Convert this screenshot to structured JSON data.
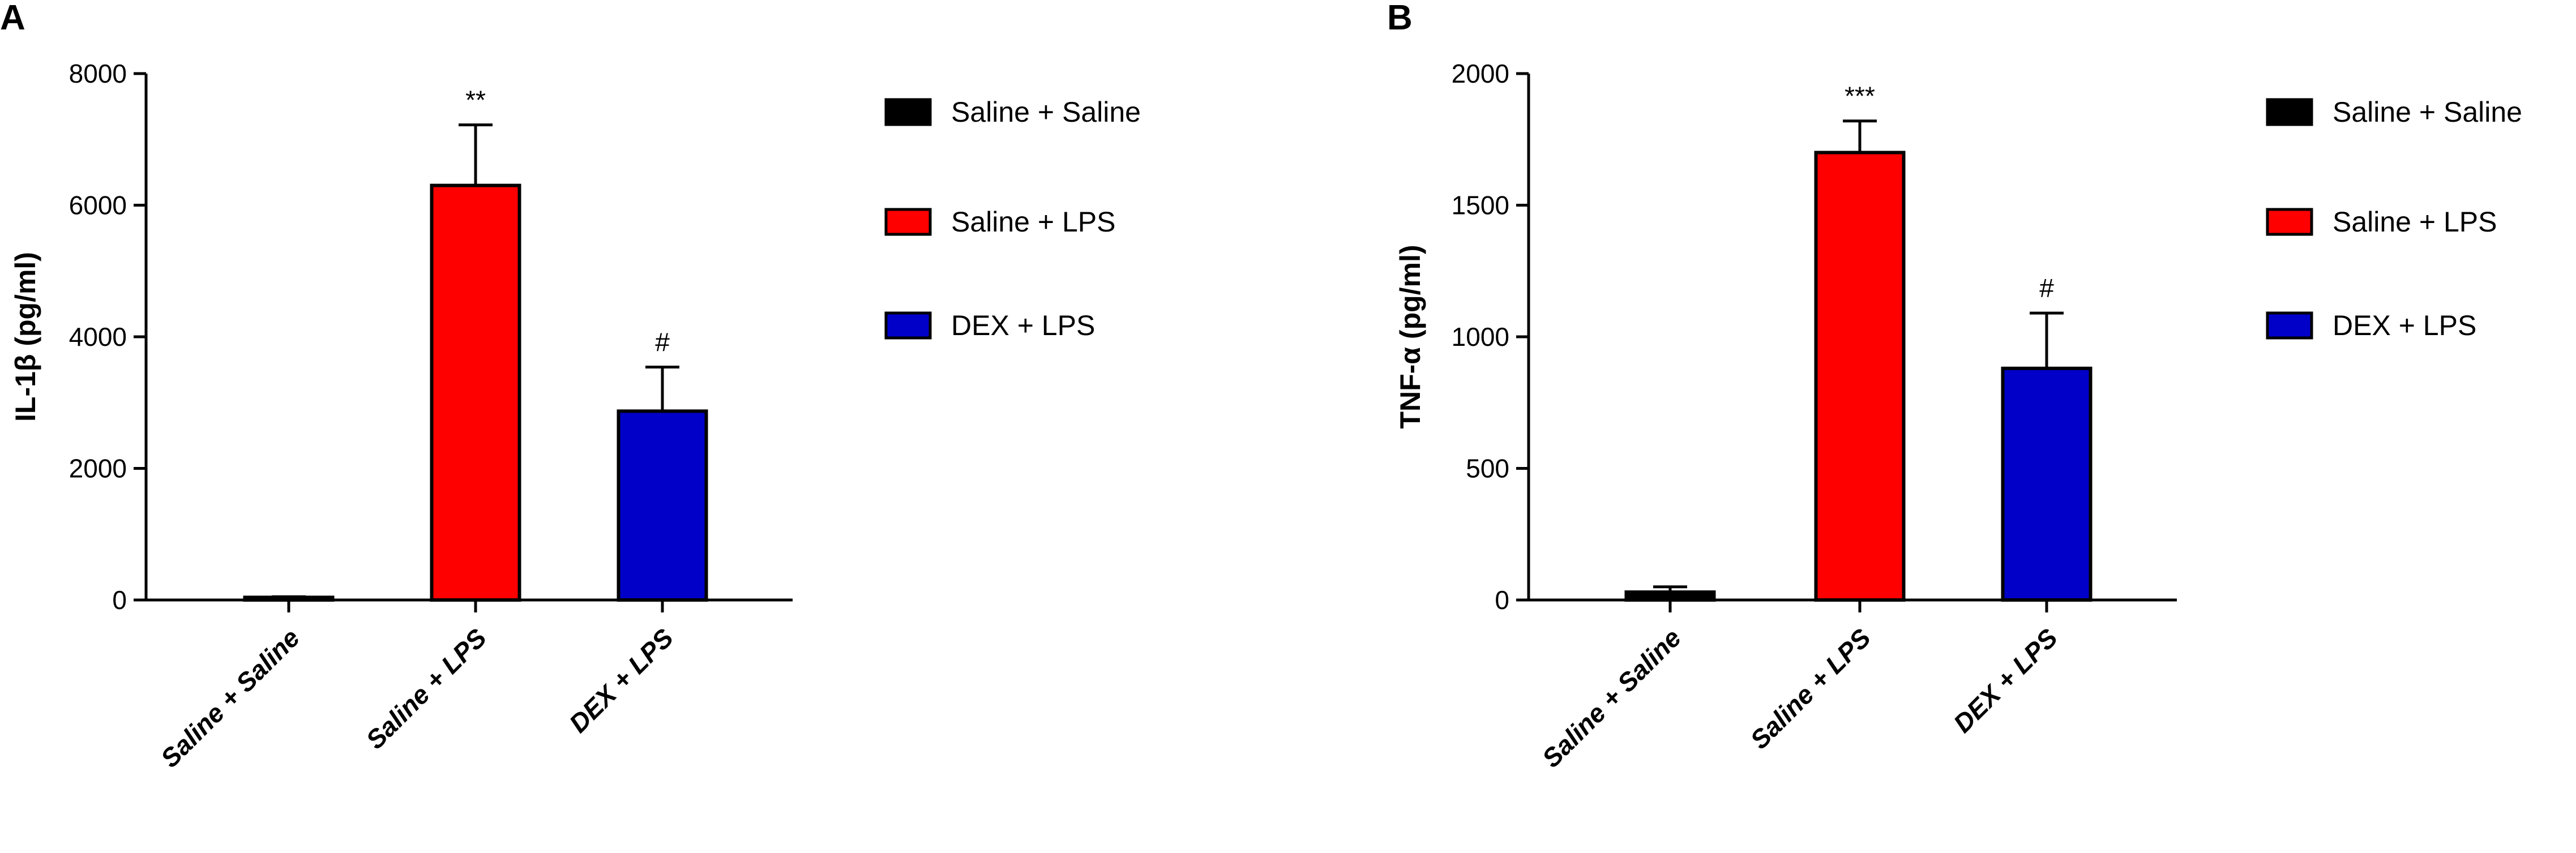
{
  "figure": {
    "panels": [
      "A",
      "B"
    ]
  },
  "colors": {
    "Saline + Saline": "#000000",
    "Saline + LPS": "#ff0000",
    "DEX + LPS": "#0000c8"
  },
  "chart_data": [
    {
      "type": "bar",
      "panel": "A",
      "title": "",
      "xlabel": "",
      "ylabel": "IL-1β (pg/ml)",
      "ylim": [
        0,
        8000
      ],
      "yticks": [
        0,
        2000,
        4000,
        6000,
        8000
      ],
      "categories": [
        "Saline + Saline",
        "Saline + LPS",
        "DEX + LPS"
      ],
      "values": [
        40,
        6300,
        2870
      ],
      "errors": [
        10,
        920,
        670
      ],
      "significance": [
        "",
        "**",
        "#"
      ],
      "legend": [
        "Saline + Saline",
        "Saline + LPS",
        "DEX + LPS"
      ],
      "legend_position": "right",
      "grid": false
    },
    {
      "type": "bar",
      "panel": "B",
      "title": "",
      "xlabel": "",
      "ylabel": "TNF-α (pg/ml)",
      "ylim": [
        0,
        2000
      ],
      "yticks": [
        0,
        500,
        1000,
        1500,
        2000
      ],
      "categories": [
        "Saline + Saline",
        "Saline + LPS",
        "DEX + LPS"
      ],
      "values": [
        30,
        1700,
        880
      ],
      "errors": [
        20,
        120,
        210
      ],
      "significance": [
        "",
        "***",
        "#"
      ],
      "legend": [
        "Saline + Saline",
        "Saline + LPS",
        "DEX + LPS"
      ],
      "legend_position": "right",
      "grid": false
    }
  ]
}
